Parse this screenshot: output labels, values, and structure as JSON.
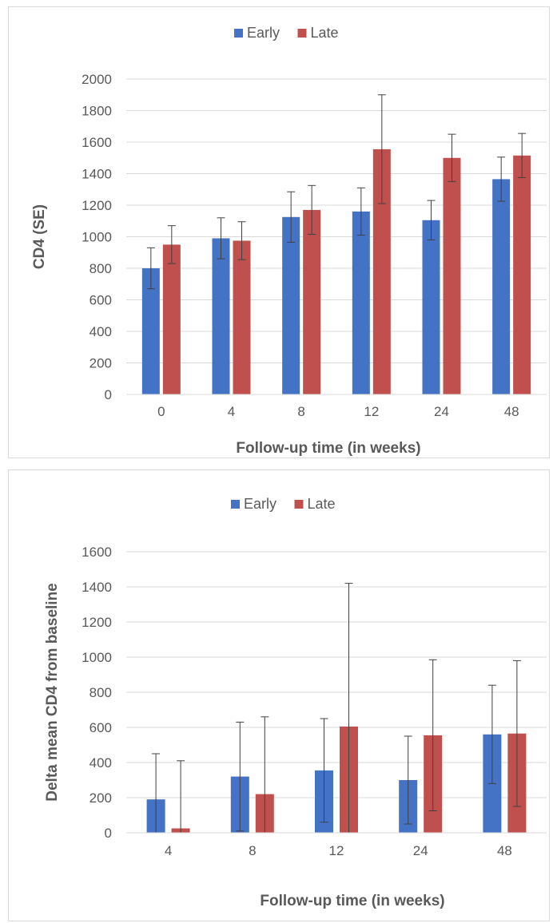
{
  "chart_data": [
    {
      "type": "bar",
      "categories": [
        "0",
        "4",
        "8",
        "12",
        "24",
        "48"
      ],
      "series": [
        {
          "name": "Early",
          "color": "#4472c4",
          "values": [
            800,
            990,
            1125,
            1160,
            1105,
            1365
          ],
          "error": [
            130,
            130,
            160,
            150,
            125,
            140
          ]
        },
        {
          "name": "Late",
          "color": "#c0504d",
          "values": [
            950,
            975,
            1170,
            1555,
            1500,
            1515
          ],
          "error": [
            120,
            120,
            155,
            345,
            150,
            140
          ]
        }
      ],
      "title": "",
      "xlabel": "Follow-up time (in weeks)",
      "ylabel": "CD4 (SE)",
      "ylim": [
        0,
        2000
      ],
      "yticks": [
        "0",
        "200",
        "400",
        "600",
        "800",
        "1000",
        "1200",
        "1400",
        "1600",
        "1800",
        "2000"
      ],
      "grid": true,
      "legend_position": "top"
    },
    {
      "type": "bar",
      "categories": [
        "4",
        "8",
        "12",
        "24",
        "48"
      ],
      "series": [
        {
          "name": "Early",
          "color": "#4472c4",
          "values": [
            190,
            320,
            355,
            300,
            560
          ],
          "error": [
            260,
            310,
            295,
            250,
            280
          ]
        },
        {
          "name": "Late",
          "color": "#c0504d",
          "values": [
            25,
            220,
            605,
            555,
            565
          ],
          "error": [
            385,
            440,
            815,
            430,
            415
          ]
        }
      ],
      "title": "",
      "xlabel": "Follow-up time (in weeks)",
      "ylabel": "Delta mean CD4 from baseline",
      "ylim": [
        0,
        1600
      ],
      "yticks": [
        "0",
        "200",
        "400",
        "600",
        "800",
        "1000",
        "1200",
        "1400",
        "1600"
      ],
      "grid": true,
      "legend_position": "top"
    }
  ]
}
